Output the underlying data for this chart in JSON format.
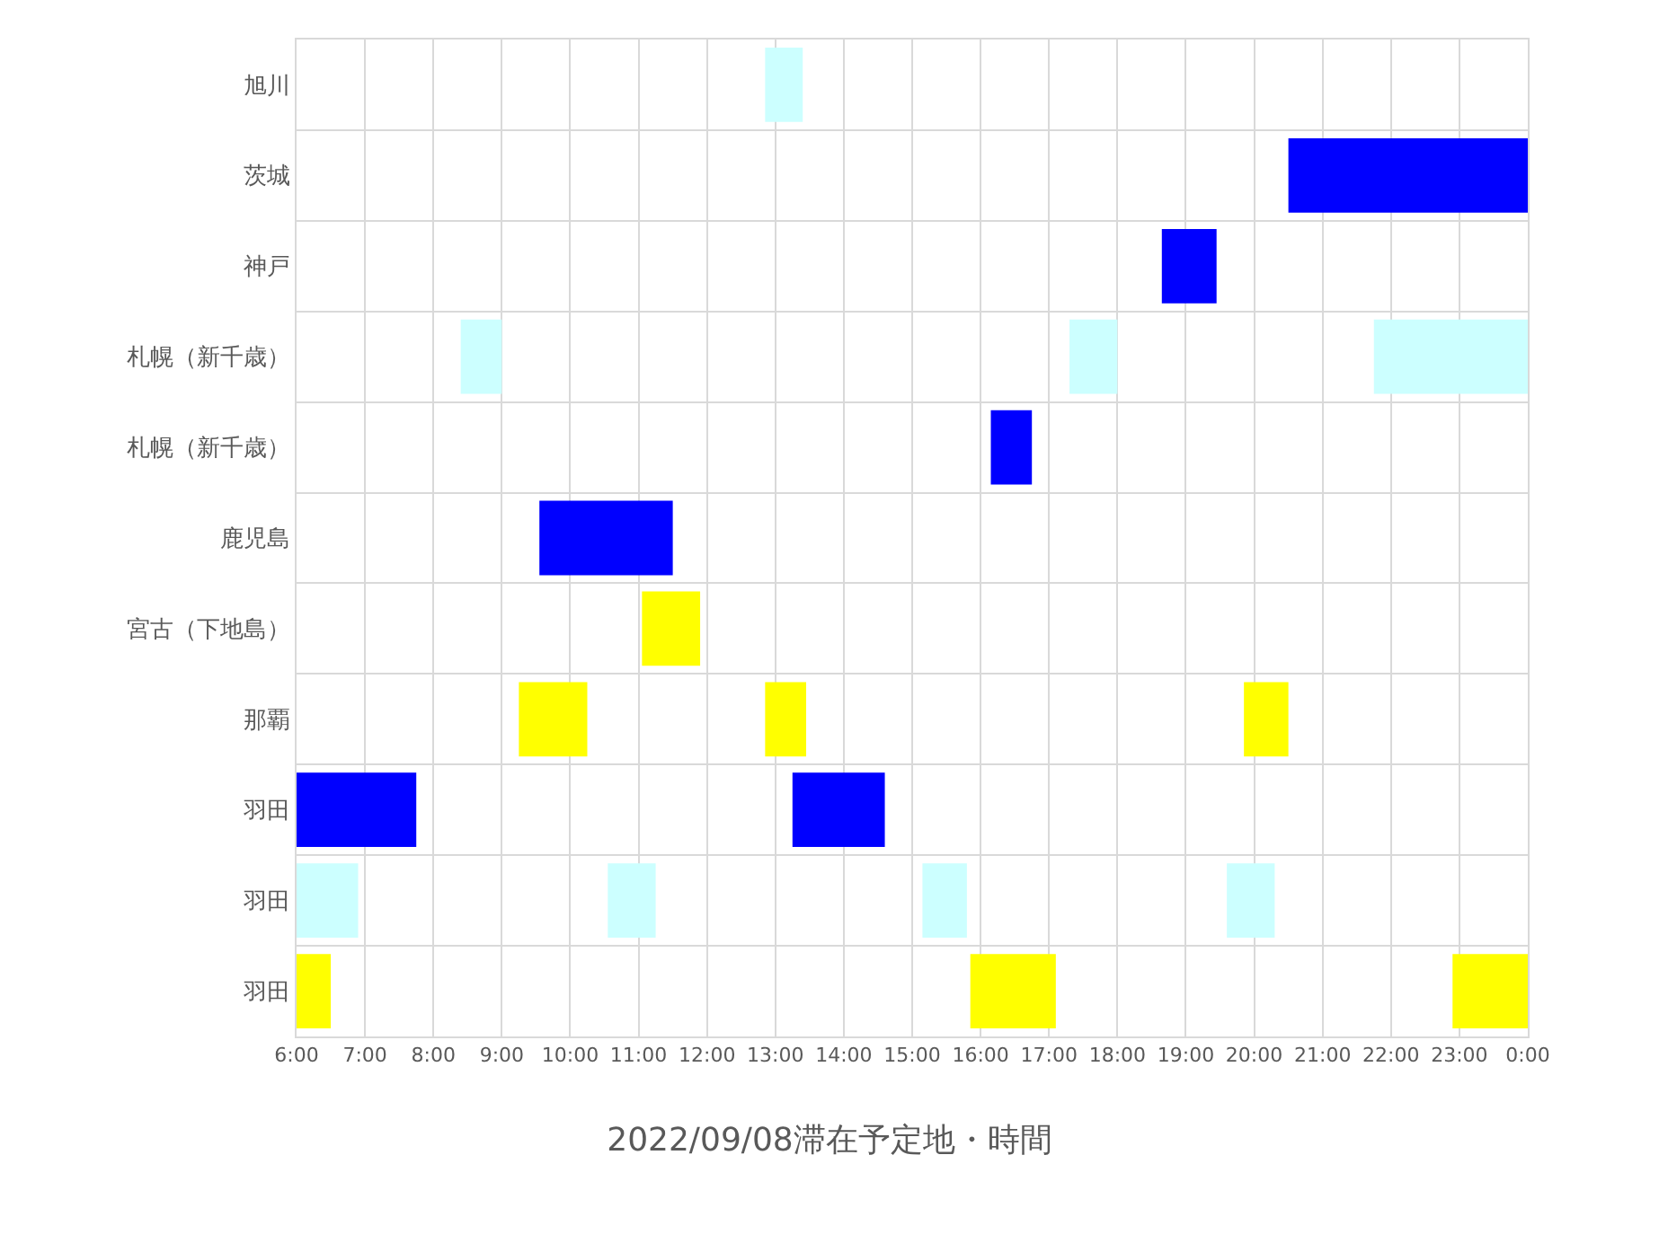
{
  "chart_data": {
    "type": "bar",
    "orientation": "horizontal",
    "title": "2022/09/08滞在予定地・時間",
    "categories": [
      "旭川",
      "茨城",
      "神戸",
      "札幌（新千歳）",
      "札幌（新千歳）",
      "鹿児島",
      "宮古（下地島）",
      "那覇",
      "羽田",
      "羽田",
      "羽田"
    ],
    "series": [
      {
        "color": "#0000ff",
        "values": [
          null,
          3.5,
          0.8,
          null,
          0.6,
          1.95,
          null,
          null,
          1.75,
          null,
          null
        ],
        "base": [
          null,
          20.5,
          18.65,
          null,
          16.15,
          9.55,
          null,
          null,
          6,
          null,
          null
        ]
      },
      {
        "color": "#0000ff",
        "values": [
          null,
          null,
          null,
          null,
          null,
          null,
          null,
          null,
          1.35,
          null,
          null
        ],
        "base": [
          null,
          null,
          null,
          null,
          null,
          null,
          null,
          null,
          13.25,
          null,
          null
        ]
      },
      {
        "color": "#ccffff",
        "values": [
          0.55,
          null,
          null,
          0.6,
          null,
          null,
          null,
          null,
          null,
          0.9,
          null
        ],
        "base": [
          12.85,
          null,
          null,
          8.4,
          null,
          null,
          null,
          null,
          null,
          6,
          null
        ]
      },
      {
        "color": "#ccffff",
        "values": [
          null,
          null,
          null,
          0.7,
          null,
          null,
          null,
          null,
          null,
          0.7,
          null
        ],
        "base": [
          null,
          null,
          null,
          17.3,
          null,
          null,
          null,
          null,
          null,
          10.55,
          null
        ]
      },
      {
        "color": "#ccffff",
        "values": [
          null,
          null,
          null,
          2.25,
          null,
          null,
          null,
          null,
          null,
          0.65,
          null
        ],
        "base": [
          null,
          null,
          null,
          21.75,
          null,
          null,
          null,
          null,
          null,
          15.15,
          null
        ]
      },
      {
        "color": "#ccffff",
        "values": [
          null,
          null,
          null,
          null,
          null,
          null,
          null,
          null,
          null,
          0.7,
          null
        ],
        "base": [
          null,
          null,
          null,
          null,
          null,
          null,
          null,
          null,
          null,
          19.6,
          null
        ]
      },
      {
        "color": "#ffff00",
        "values": [
          null,
          null,
          null,
          null,
          null,
          null,
          0.85,
          1.0,
          null,
          null,
          0.5
        ],
        "base": [
          null,
          null,
          null,
          null,
          null,
          null,
          11.05,
          9.25,
          null,
          null,
          6
        ]
      },
      {
        "color": "#ffff00",
        "values": [
          null,
          null,
          null,
          null,
          null,
          null,
          null,
          0.6,
          null,
          null,
          1.25
        ],
        "base": [
          null,
          null,
          null,
          null,
          null,
          null,
          null,
          12.85,
          null,
          null,
          15.85
        ]
      },
      {
        "color": "#ffff00",
        "values": [
          null,
          null,
          null,
          null,
          null,
          null,
          null,
          0.65,
          null,
          null,
          1.1
        ],
        "base": [
          null,
          null,
          null,
          null,
          null,
          null,
          null,
          19.85,
          null,
          null,
          22.9
        ]
      }
    ],
    "xlim": [
      6,
      24
    ],
    "xticks": [
      {
        "value": 6,
        "label": "6:00"
      },
      {
        "value": 7,
        "label": "7:00"
      },
      {
        "value": 8,
        "label": "8:00"
      },
      {
        "value": 9,
        "label": "9:00"
      },
      {
        "value": 10,
        "label": "10:00"
      },
      {
        "value": 11,
        "label": "11:00"
      },
      {
        "value": 12,
        "label": "12:00"
      },
      {
        "value": 13,
        "label": "13:00"
      },
      {
        "value": 14,
        "label": "14:00"
      },
      {
        "value": 15,
        "label": "15:00"
      },
      {
        "value": 16,
        "label": "16:00"
      },
      {
        "value": 17,
        "label": "17:00"
      },
      {
        "value": 18,
        "label": "18:00"
      },
      {
        "value": 19,
        "label": "19:00"
      },
      {
        "value": 20,
        "label": "20:00"
      },
      {
        "value": 21,
        "label": "21:00"
      },
      {
        "value": 22,
        "label": "22:00"
      },
      {
        "value": 23,
        "label": "23:00"
      },
      {
        "value": 24,
        "label": "0:00"
      }
    ],
    "grid": true
  }
}
